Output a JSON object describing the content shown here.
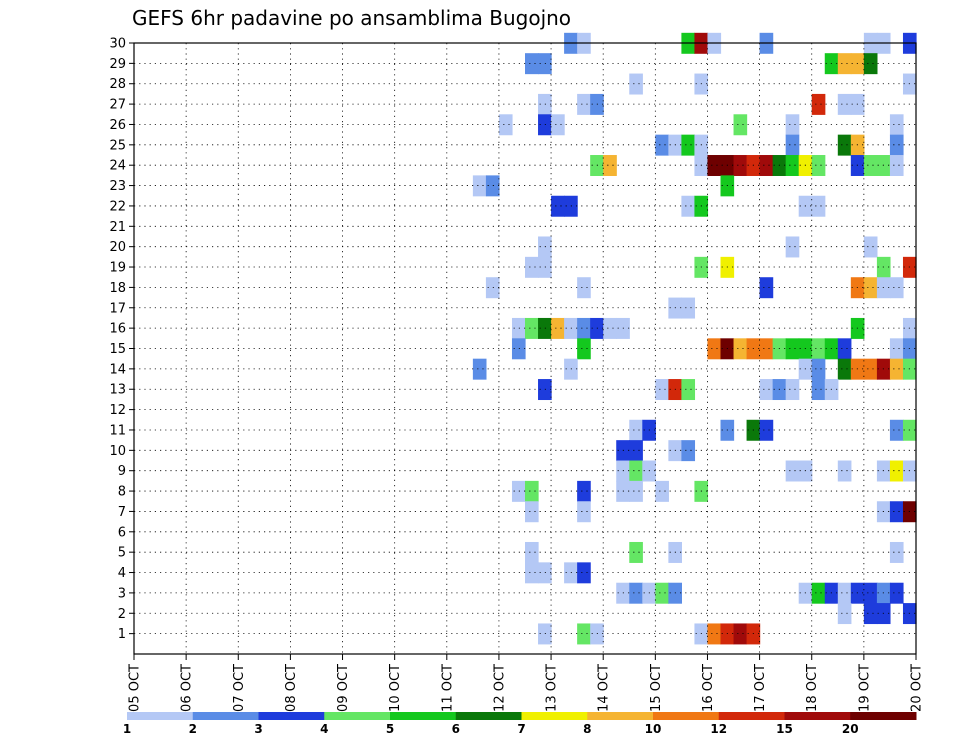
{
  "chart_data": {
    "type": "heatmap",
    "title": "GEFS 6hr padavine po ansamblima Bugojno",
    "xlabel": "",
    "ylabel": "",
    "x_tick_labels": [
      "05 OCT",
      "06 OCT",
      "07 OCT",
      "08 OCT",
      "09 OCT",
      "10 OCT",
      "11 OCT",
      "12 OCT",
      "13 OCT",
      "14 OCT",
      "15 OCT",
      "16 OCT",
      "17 OCT",
      "18 OCT",
      "19 OCT",
      "20 OCT"
    ],
    "y_tick_labels": [
      "1",
      "2",
      "3",
      "4",
      "5",
      "6",
      "7",
      "8",
      "9",
      "10",
      "11",
      "12",
      "13",
      "14",
      "15",
      "16",
      "17",
      "18",
      "19",
      "20",
      "21",
      "22",
      "23",
      "24",
      "25",
      "26",
      "27",
      "28",
      "29",
      "30"
    ],
    "ylim": [
      0,
      30
    ],
    "time_step_hours": 6,
    "grid": "dotted",
    "colorbar": {
      "levels": [
        "1",
        "2",
        "3",
        "4",
        "5",
        "6",
        "7",
        "8",
        "10",
        "12",
        "15",
        "20"
      ],
      "colors": [
        "#b4c8f5",
        "#5a8ce6",
        "#1e3cdc",
        "#64e664",
        "#14c81e",
        "#0a780a",
        "#f0f000",
        "#f5b432",
        "#f07814",
        "#d2280a",
        "#a00a0a",
        "#6e0000"
      ]
    },
    "cells": [
      {
        "member": 30,
        "day": 13.25,
        "v": 2
      },
      {
        "member": 30,
        "day": 13.5,
        "v": 1
      },
      {
        "member": 30,
        "day": 15.5,
        "v": 5
      },
      {
        "member": 30,
        "day": 15.75,
        "v": 11
      },
      {
        "member": 30,
        "day": 16.0,
        "v": 1
      },
      {
        "member": 30,
        "day": 17.0,
        "v": 2
      },
      {
        "member": 30,
        "day": 19.0,
        "v": 1
      },
      {
        "member": 30,
        "day": 19.25,
        "v": 1
      },
      {
        "member": 30,
        "day": 19.75,
        "v": 3
      },
      {
        "member": 29,
        "day": 12.5,
        "v": 2
      },
      {
        "member": 29,
        "day": 12.75,
        "v": 2
      },
      {
        "member": 29,
        "day": 18.25,
        "v": 5
      },
      {
        "member": 29,
        "day": 18.5,
        "v": 8
      },
      {
        "member": 29,
        "day": 18.75,
        "v": 8
      },
      {
        "member": 29,
        "day": 19.0,
        "v": 6
      },
      {
        "member": 28,
        "day": 14.5,
        "v": 1
      },
      {
        "member": 28,
        "day": 15.75,
        "v": 1
      },
      {
        "member": 28,
        "day": 19.75,
        "v": 1
      },
      {
        "member": 27,
        "day": 12.75,
        "v": 1
      },
      {
        "member": 27,
        "day": 13.5,
        "v": 1
      },
      {
        "member": 27,
        "day": 13.75,
        "v": 2
      },
      {
        "member": 27,
        "day": 18.0,
        "v": 10
      },
      {
        "member": 27,
        "day": 18.5,
        "v": 1
      },
      {
        "member": 27,
        "day": 18.75,
        "v": 1
      },
      {
        "member": 26,
        "day": 12.0,
        "v": 1
      },
      {
        "member": 26,
        "day": 12.75,
        "v": 3
      },
      {
        "member": 26,
        "day": 13.0,
        "v": 1
      },
      {
        "member": 26,
        "day": 16.5,
        "v": 4
      },
      {
        "member": 26,
        "day": 17.5,
        "v": 1
      },
      {
        "member": 26,
        "day": 19.5,
        "v": 1
      },
      {
        "member": 25,
        "day": 15.0,
        "v": 2
      },
      {
        "member": 25,
        "day": 15.25,
        "v": 1
      },
      {
        "member": 25,
        "day": 15.5,
        "v": 5
      },
      {
        "member": 25,
        "day": 15.75,
        "v": 1
      },
      {
        "member": 25,
        "day": 17.5,
        "v": 2
      },
      {
        "member": 25,
        "day": 18.5,
        "v": 6
      },
      {
        "member": 25,
        "day": 18.75,
        "v": 8
      },
      {
        "member": 25,
        "day": 19.5,
        "v": 2
      },
      {
        "member": 24,
        "day": 13.75,
        "v": 4
      },
      {
        "member": 24,
        "day": 14.0,
        "v": 8
      },
      {
        "member": 24,
        "day": 15.75,
        "v": 1
      },
      {
        "member": 24,
        "day": 16.0,
        "v": 12
      },
      {
        "member": 24,
        "day": 16.25,
        "v": 12
      },
      {
        "member": 24,
        "day": 16.5,
        "v": 11
      },
      {
        "member": 24,
        "day": 16.75,
        "v": 10
      },
      {
        "member": 24,
        "day": 17.0,
        "v": 11
      },
      {
        "member": 24,
        "day": 17.25,
        "v": 6
      },
      {
        "member": 24,
        "day": 17.5,
        "v": 5
      },
      {
        "member": 24,
        "day": 17.75,
        "v": 7
      },
      {
        "member": 24,
        "day": 18.0,
        "v": 4
      },
      {
        "member": 24,
        "day": 18.75,
        "v": 3
      },
      {
        "member": 24,
        "day": 19.0,
        "v": 4
      },
      {
        "member": 24,
        "day": 19.25,
        "v": 4
      },
      {
        "member": 24,
        "day": 19.5,
        "v": 1
      },
      {
        "member": 23,
        "day": 11.5,
        "v": 1
      },
      {
        "member": 23,
        "day": 11.75,
        "v": 2
      },
      {
        "member": 23,
        "day": 16.25,
        "v": 5
      },
      {
        "member": 22,
        "day": 13.0,
        "v": 3
      },
      {
        "member": 22,
        "day": 13.25,
        "v": 3
      },
      {
        "member": 22,
        "day": 15.5,
        "v": 1
      },
      {
        "member": 22,
        "day": 15.75,
        "v": 5
      },
      {
        "member": 22,
        "day": 17.75,
        "v": 1
      },
      {
        "member": 22,
        "day": 18.0,
        "v": 1
      },
      {
        "member": 20,
        "day": 12.75,
        "v": 1
      },
      {
        "member": 20,
        "day": 17.5,
        "v": 1
      },
      {
        "member": 20,
        "day": 19.0,
        "v": 1
      },
      {
        "member": 19,
        "day": 12.5,
        "v": 1
      },
      {
        "member": 19,
        "day": 12.75,
        "v": 1
      },
      {
        "member": 19,
        "day": 15.75,
        "v": 4
      },
      {
        "member": 19,
        "day": 16.25,
        "v": 7
      },
      {
        "member": 19,
        "day": 19.25,
        "v": 4
      },
      {
        "member": 19,
        "day": 19.75,
        "v": 10
      },
      {
        "member": 18,
        "day": 11.75,
        "v": 1
      },
      {
        "member": 18,
        "day": 13.5,
        "v": 1
      },
      {
        "member": 18,
        "day": 17.0,
        "v": 3
      },
      {
        "member": 18,
        "day": 18.75,
        "v": 9
      },
      {
        "member": 18,
        "day": 19.0,
        "v": 8
      },
      {
        "member": 18,
        "day": 19.25,
        "v": 1
      },
      {
        "member": 18,
        "day": 19.5,
        "v": 1
      },
      {
        "member": 17,
        "day": 15.25,
        "v": 1
      },
      {
        "member": 17,
        "day": 15.5,
        "v": 1
      },
      {
        "member": 16,
        "day": 12.25,
        "v": 1
      },
      {
        "member": 16,
        "day": 12.5,
        "v": 4
      },
      {
        "member": 16,
        "day": 12.75,
        "v": 6
      },
      {
        "member": 16,
        "day": 13.0,
        "v": 8
      },
      {
        "member": 16,
        "day": 13.25,
        "v": 1
      },
      {
        "member": 16,
        "day": 13.5,
        "v": 2
      },
      {
        "member": 16,
        "day": 13.75,
        "v": 3
      },
      {
        "member": 16,
        "day": 14.0,
        "v": 1
      },
      {
        "member": 16,
        "day": 14.25,
        "v": 1
      },
      {
        "member": 16,
        "day": 18.75,
        "v": 5
      },
      {
        "member": 16,
        "day": 19.75,
        "v": 1
      },
      {
        "member": 15,
        "day": 12.25,
        "v": 2
      },
      {
        "member": 15,
        "day": 13.5,
        "v": 5
      },
      {
        "member": 15,
        "day": 16.0,
        "v": 9
      },
      {
        "member": 15,
        "day": 16.25,
        "v": 12
      },
      {
        "member": 15,
        "day": 16.5,
        "v": 8
      },
      {
        "member": 15,
        "day": 16.75,
        "v": 9
      },
      {
        "member": 15,
        "day": 17.0,
        "v": 9
      },
      {
        "member": 15,
        "day": 17.25,
        "v": 4
      },
      {
        "member": 15,
        "day": 17.5,
        "v": 5
      },
      {
        "member": 15,
        "day": 17.75,
        "v": 5
      },
      {
        "member": 15,
        "day": 18.0,
        "v": 4
      },
      {
        "member": 15,
        "day": 18.25,
        "v": 5
      },
      {
        "member": 15,
        "day": 18.5,
        "v": 3
      },
      {
        "member": 15,
        "day": 19.5,
        "v": 1
      },
      {
        "member": 15,
        "day": 19.75,
        "v": 2
      },
      {
        "member": 14,
        "day": 11.5,
        "v": 2
      },
      {
        "member": 14,
        "day": 13.25,
        "v": 1
      },
      {
        "member": 14,
        "day": 17.75,
        "v": 1
      },
      {
        "member": 14,
        "day": 18.0,
        "v": 2
      },
      {
        "member": 14,
        "day": 18.5,
        "v": 6
      },
      {
        "member": 14,
        "day": 18.75,
        "v": 9
      },
      {
        "member": 14,
        "day": 19.0,
        "v": 9
      },
      {
        "member": 14,
        "day": 19.25,
        "v": 11
      },
      {
        "member": 14,
        "day": 19.5,
        "v": 8
      },
      {
        "member": 14,
        "day": 19.75,
        "v": 4
      },
      {
        "member": 13,
        "day": 12.75,
        "v": 3
      },
      {
        "member": 13,
        "day": 15.0,
        "v": 1
      },
      {
        "member": 13,
        "day": 15.25,
        "v": 10
      },
      {
        "member": 13,
        "day": 15.5,
        "v": 4
      },
      {
        "member": 13,
        "day": 17.0,
        "v": 1
      },
      {
        "member": 13,
        "day": 17.25,
        "v": 2
      },
      {
        "member": 13,
        "day": 17.5,
        "v": 1
      },
      {
        "member": 13,
        "day": 18.0,
        "v": 2
      },
      {
        "member": 13,
        "day": 18.25,
        "v": 1
      },
      {
        "member": 11,
        "day": 14.5,
        "v": 1
      },
      {
        "member": 11,
        "day": 14.75,
        "v": 3
      },
      {
        "member": 11,
        "day": 16.25,
        "v": 2
      },
      {
        "member": 11,
        "day": 16.75,
        "v": 6
      },
      {
        "member": 11,
        "day": 17.0,
        "v": 3
      },
      {
        "member": 11,
        "day": 19.5,
        "v": 2
      },
      {
        "member": 11,
        "day": 19.75,
        "v": 4
      },
      {
        "member": 10,
        "day": 14.25,
        "v": 3
      },
      {
        "member": 10,
        "day": 14.5,
        "v": 3
      },
      {
        "member": 10,
        "day": 15.25,
        "v": 1
      },
      {
        "member": 10,
        "day": 15.5,
        "v": 2
      },
      {
        "member": 9,
        "day": 14.25,
        "v": 1
      },
      {
        "member": 9,
        "day": 14.5,
        "v": 4
      },
      {
        "member": 9,
        "day": 14.75,
        "v": 1
      },
      {
        "member": 9,
        "day": 17.5,
        "v": 1
      },
      {
        "member": 9,
        "day": 17.75,
        "v": 1
      },
      {
        "member": 9,
        "day": 18.5,
        "v": 1
      },
      {
        "member": 9,
        "day": 19.25,
        "v": 1
      },
      {
        "member": 9,
        "day": 19.5,
        "v": 7
      },
      {
        "member": 9,
        "day": 19.75,
        "v": 1
      },
      {
        "member": 8,
        "day": 12.25,
        "v": 1
      },
      {
        "member": 8,
        "day": 12.5,
        "v": 4
      },
      {
        "member": 8,
        "day": 13.5,
        "v": 3
      },
      {
        "member": 8,
        "day": 14.25,
        "v": 1
      },
      {
        "member": 8,
        "day": 14.5,
        "v": 1
      },
      {
        "member": 8,
        "day": 15.0,
        "v": 1
      },
      {
        "member": 8,
        "day": 15.75,
        "v": 4
      },
      {
        "member": 7,
        "day": 12.5,
        "v": 1
      },
      {
        "member": 7,
        "day": 13.5,
        "v": 1
      },
      {
        "member": 7,
        "day": 19.25,
        "v": 1
      },
      {
        "member": 7,
        "day": 19.5,
        "v": 3
      },
      {
        "member": 7,
        "day": 19.75,
        "v": 12
      },
      {
        "member": 5,
        "day": 12.5,
        "v": 1
      },
      {
        "member": 5,
        "day": 14.5,
        "v": 4
      },
      {
        "member": 5,
        "day": 15.25,
        "v": 1
      },
      {
        "member": 5,
        "day": 19.5,
        "v": 1
      },
      {
        "member": 4,
        "day": 12.5,
        "v": 1
      },
      {
        "member": 4,
        "day": 12.75,
        "v": 1
      },
      {
        "member": 4,
        "day": 13.25,
        "v": 1
      },
      {
        "member": 4,
        "day": 13.5,
        "v": 3
      },
      {
        "member": 3,
        "day": 14.25,
        "v": 1
      },
      {
        "member": 3,
        "day": 14.5,
        "v": 2
      },
      {
        "member": 3,
        "day": 14.75,
        "v": 1
      },
      {
        "member": 3,
        "day": 15.0,
        "v": 4
      },
      {
        "member": 3,
        "day": 15.25,
        "v": 2
      },
      {
        "member": 3,
        "day": 17.75,
        "v": 1
      },
      {
        "member": 3,
        "day": 18.0,
        "v": 5
      },
      {
        "member": 3,
        "day": 18.25,
        "v": 3
      },
      {
        "member": 3,
        "day": 18.5,
        "v": 1
      },
      {
        "member": 3,
        "day": 18.75,
        "v": 3
      },
      {
        "member": 3,
        "day": 19.0,
        "v": 3
      },
      {
        "member": 3,
        "day": 19.25,
        "v": 2
      },
      {
        "member": 3,
        "day": 19.5,
        "v": 3
      },
      {
        "member": 2,
        "day": 18.5,
        "v": 1
      },
      {
        "member": 2,
        "day": 19.0,
        "v": 3
      },
      {
        "member": 2,
        "day": 19.25,
        "v": 3
      },
      {
        "member": 2,
        "day": 19.75,
        "v": 3
      },
      {
        "member": 1,
        "day": 12.75,
        "v": 1
      },
      {
        "member": 1,
        "day": 13.5,
        "v": 4
      },
      {
        "member": 1,
        "day": 13.75,
        "v": 1
      },
      {
        "member": 1,
        "day": 15.75,
        "v": 1
      },
      {
        "member": 1,
        "day": 16.0,
        "v": 9
      },
      {
        "member": 1,
        "day": 16.25,
        "v": 10
      },
      {
        "member": 1,
        "day": 16.5,
        "v": 11
      },
      {
        "member": 1,
        "day": 16.75,
        "v": 10
      }
    ]
  }
}
